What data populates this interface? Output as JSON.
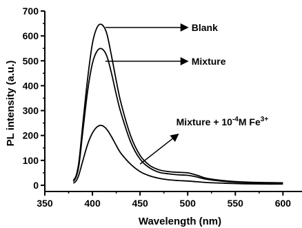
{
  "chart_data": {
    "type": "line",
    "xlabel": "Wavelength (nm)",
    "ylabel": "PL intensity (a.u.)",
    "xlim": [
      350,
      620
    ],
    "ylim": [
      -25,
      700
    ],
    "xticks": [
      350,
      400,
      450,
      500,
      550,
      600
    ],
    "yticks": [
      0,
      100,
      200,
      300,
      400,
      500,
      600,
      700
    ],
    "grid": false,
    "series": [
      {
        "name": "Blank",
        "x": [
          380,
          383,
          386,
          390,
          395,
          400,
          405,
          410,
          415,
          420,
          425,
          430,
          440,
          450,
          460,
          470,
          480,
          490,
          500,
          510,
          520,
          540,
          560,
          580,
          600
        ],
        "y": [
          20,
          40,
          100,
          250,
          430,
          570,
          635,
          645,
          610,
          520,
          420,
          330,
          200,
          120,
          80,
          62,
          55,
          52,
          50,
          40,
          28,
          18,
          13,
          11,
          10
        ]
      },
      {
        "name": "Mixture",
        "x": [
          380,
          383,
          386,
          390,
          395,
          400,
          405,
          410,
          415,
          420,
          425,
          430,
          440,
          450,
          460,
          470,
          480,
          490,
          500,
          510,
          520,
          540,
          560,
          580,
          600
        ],
        "y": [
          15,
          35,
          85,
          220,
          380,
          490,
          540,
          548,
          520,
          450,
          365,
          290,
          175,
          105,
          70,
          52,
          46,
          42,
          40,
          33,
          24,
          15,
          11,
          9,
          8
        ]
      },
      {
        "name": "Mixture + 10-4M Fe3+",
        "x": [
          380,
          383,
          386,
          390,
          395,
          400,
          405,
          410,
          415,
          420,
          425,
          430,
          440,
          450,
          460,
          470,
          480,
          490,
          500,
          510,
          520,
          540,
          560,
          580,
          600
        ],
        "y": [
          8,
          18,
          45,
          100,
          165,
          210,
          235,
          240,
          225,
          195,
          160,
          128,
          85,
          55,
          38,
          28,
          22,
          19,
          17,
          14,
          11,
          8,
          6,
          5,
          5
        ]
      }
    ],
    "annotations": [
      {
        "text": "Blank",
        "series": "Blank"
      },
      {
        "text": "Mixture",
        "series": "Mixture"
      },
      {
        "base": "Mixture + 10",
        "sup1": "-4",
        "mid": "M Fe",
        "sup2": "3+",
        "series": "Mixture + 10-4M Fe3+"
      }
    ]
  }
}
